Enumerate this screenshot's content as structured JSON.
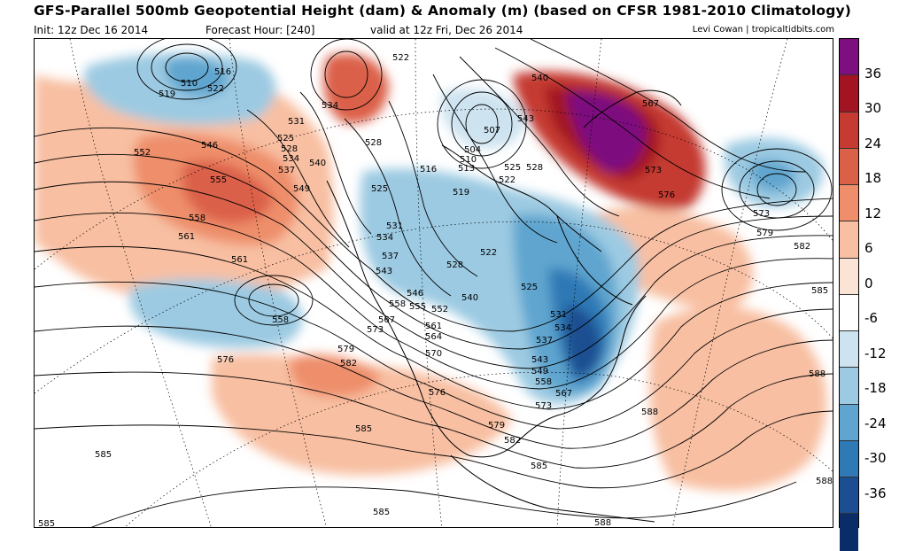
{
  "header": {
    "title": "GFS-Parallel 500mb Geopotential Height (dam) & Anomaly (m) (based on CFSR 1981-2010 Climatology)",
    "init": "Init: 12z Dec 16 2014",
    "forecast_hour": "Forecast Hour: [240]",
    "valid": "valid at 12z Fri, Dec 26 2014",
    "credit": "Levi Cowan | tropicaltidbits.com"
  },
  "colorbar": {
    "labels": [
      "36",
      "30",
      "24",
      "18",
      "12",
      "6",
      "0",
      "-6",
      "-12",
      "-18",
      "-24",
      "-30",
      "-36"
    ],
    "colors": [
      "#7d0f7f",
      "#a31422",
      "#c53a31",
      "#db6048",
      "#ee8e6b",
      "#f8bfa2",
      "#fbe3d5",
      "#ffffff",
      "#cde3f0",
      "#9ccae2",
      "#5fa5cf",
      "#2f79b5",
      "#1b4f92",
      "#0a2d68"
    ]
  },
  "contour_labels": [
    "510",
    "516",
    "519",
    "522",
    "522",
    "531",
    "534",
    "525",
    "528",
    "534",
    "537",
    "540",
    "546",
    "552",
    "555",
    "549",
    "558",
    "561",
    "561",
    "528",
    "516",
    "519",
    "513",
    "510",
    "504",
    "507",
    "525",
    "528",
    "522",
    "540",
    "543",
    "567",
    "573",
    "576",
    "573",
    "579",
    "582",
    "585",
    "525",
    "531",
    "534",
    "537",
    "543",
    "546",
    "558",
    "555",
    "552",
    "540",
    "528",
    "522",
    "525",
    "531",
    "534",
    "537",
    "543",
    "549",
    "558",
    "567",
    "573",
    "567",
    "573",
    "579",
    "582",
    "561",
    "564",
    "570",
    "576",
    "579",
    "582",
    "558",
    "576",
    "585",
    "585",
    "585",
    "588",
    "588",
    "588",
    "585",
    "585",
    "588"
  ]
}
